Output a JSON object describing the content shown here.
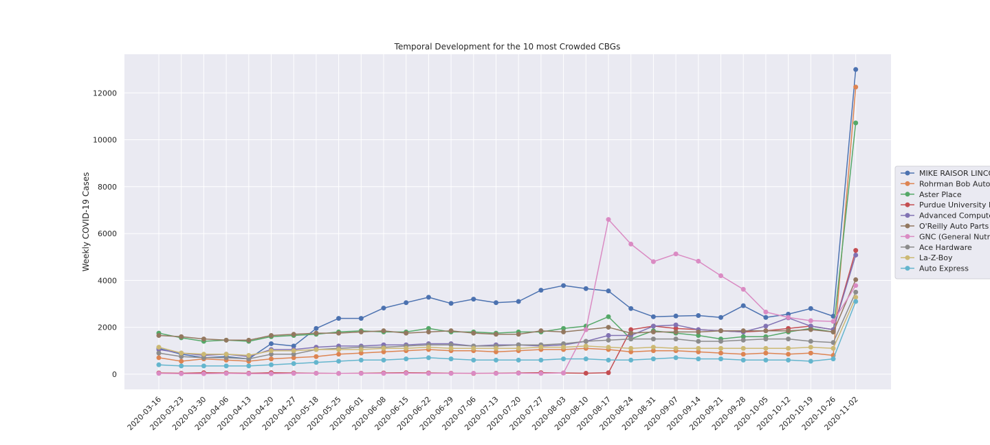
{
  "chart_data": {
    "type": "line",
    "title": "Temporal Development for the 10 most Crowded CBGs",
    "xlabel": "",
    "ylabel": "Weekly COVID-19 Cases",
    "ylim": [
      -650,
      13650
    ],
    "yticks": [
      0,
      2000,
      4000,
      6000,
      8000,
      10000,
      12000
    ],
    "grid": true,
    "legend_position": "right",
    "categories": [
      "2020-03-16",
      "2020-03-23",
      "2020-03-30",
      "2020-04-06",
      "2020-04-13",
      "2020-04-20",
      "2020-04-27",
      "2020-05-18",
      "2020-05-25",
      "2020-06-01",
      "2020-06-08",
      "2020-06-15",
      "2020-06-22",
      "2020-06-29",
      "2020-07-06",
      "2020-07-13",
      "2020-07-20",
      "2020-07-27",
      "2020-08-03",
      "2020-08-10",
      "2020-08-17",
      "2020-08-24",
      "2020-08-31",
      "2020-09-07",
      "2020-09-14",
      "2020-09-21",
      "2020-09-28",
      "2020-10-05",
      "2020-10-12",
      "2020-10-19",
      "2020-10-26",
      "2020-11-02"
    ],
    "series": [
      {
        "name": "MIKE RAISOR LINCO",
        "color": "#4c72b0",
        "values": [
          1100,
          850,
          700,
          750,
          650,
          1300,
          1200,
          1950,
          2380,
          2380,
          2820,
          3050,
          3280,
          3020,
          3200,
          3050,
          3100,
          3580,
          3780,
          3650,
          3550,
          2800,
          2450,
          2480,
          2500,
          2420,
          2920,
          2420,
          2560,
          2800,
          2470,
          13000
        ]
      },
      {
        "name": "Rohrman Bob Auto",
        "color": "#dd8452",
        "values": [
          700,
          550,
          650,
          600,
          550,
          650,
          700,
          750,
          850,
          900,
          950,
          1000,
          1050,
          1000,
          1000,
          950,
          1000,
          1050,
          1050,
          1100,
          1050,
          950,
          1000,
          1000,
          950,
          900,
          850,
          900,
          850,
          900,
          800,
          12250
        ]
      },
      {
        "name": "Aster Place",
        "color": "#55a868",
        "values": [
          1750,
          1550,
          1400,
          1450,
          1400,
          1600,
          1650,
          1700,
          1800,
          1850,
          1800,
          1800,
          1950,
          1800,
          1800,
          1750,
          1800,
          1800,
          1950,
          2050,
          2450,
          1500,
          1850,
          1750,
          1650,
          1500,
          1600,
          1600,
          1800,
          1950,
          1800,
          10720
        ]
      },
      {
        "name": "Purdue University I",
        "color": "#c44e52",
        "values": [
          50,
          40,
          60,
          50,
          40,
          60,
          50,
          40,
          30,
          40,
          50,
          60,
          50,
          40,
          30,
          40,
          50,
          60,
          50,
          40,
          60,
          1900,
          2050,
          1950,
          1900,
          1850,
          1800,
          1850,
          1950,
          2050,
          1900,
          5280
        ]
      },
      {
        "name": "Advanced Compute",
        "color": "#8172b3",
        "values": [
          1050,
          900,
          800,
          850,
          750,
          1050,
          1050,
          1150,
          1200,
          1200,
          1250,
          1250,
          1300,
          1300,
          1200,
          1250,
          1250,
          1200,
          1250,
          1400,
          1650,
          1650,
          2050,
          2100,
          1900,
          1850,
          1800,
          2050,
          2400,
          2050,
          1900,
          5080
        ]
      },
      {
        "name": "O'Reilly Auto Parts",
        "color": "#937860",
        "values": [
          1650,
          1600,
          1500,
          1450,
          1450,
          1650,
          1700,
          1750,
          1750,
          1800,
          1850,
          1750,
          1800,
          1850,
          1750,
          1700,
          1700,
          1850,
          1800,
          1900,
          2000,
          1750,
          1800,
          1800,
          1800,
          1850,
          1850,
          1850,
          1850,
          1900,
          1800,
          4030
        ]
      },
      {
        "name": "GNC (General Nutr",
        "color": "#da8bc3",
        "values": [
          30,
          20,
          20,
          30,
          20,
          20,
          30,
          40,
          30,
          30,
          30,
          40,
          30,
          30,
          40,
          30,
          40,
          30,
          50,
          1900,
          6600,
          5550,
          4800,
          5130,
          4820,
          4200,
          3620,
          2650,
          2420,
          2280,
          2250,
          3780
        ]
      },
      {
        "name": "Ace Hardware",
        "color": "#8c8c8c",
        "values": [
          900,
          750,
          700,
          700,
          650,
          850,
          850,
          1050,
          1100,
          1150,
          1150,
          1200,
          1250,
          1250,
          1200,
          1200,
          1250,
          1250,
          1300,
          1400,
          1450,
          1500,
          1500,
          1500,
          1400,
          1400,
          1450,
          1500,
          1500,
          1400,
          1350,
          3500
        ]
      },
      {
        "name": "La-Z-Boy",
        "color": "#ccb974",
        "values": [
          1150,
          900,
          850,
          850,
          800,
          1000,
          1000,
          1050,
          1050,
          1050,
          1100,
          1100,
          1150,
          1100,
          1100,
          1100,
          1100,
          1150,
          1150,
          1200,
          1150,
          1100,
          1150,
          1100,
          1100,
          1100,
          1100,
          1100,
          1100,
          1150,
          1100,
          3280
        ]
      },
      {
        "name": "Auto Express",
        "color": "#64b5cd",
        "values": [
          400,
          350,
          350,
          350,
          350,
          400,
          450,
          500,
          550,
          600,
          600,
          650,
          700,
          650,
          600,
          600,
          600,
          600,
          650,
          650,
          600,
          600,
          650,
          700,
          650,
          650,
          600,
          600,
          600,
          550,
          650,
          3100
        ]
      }
    ]
  }
}
